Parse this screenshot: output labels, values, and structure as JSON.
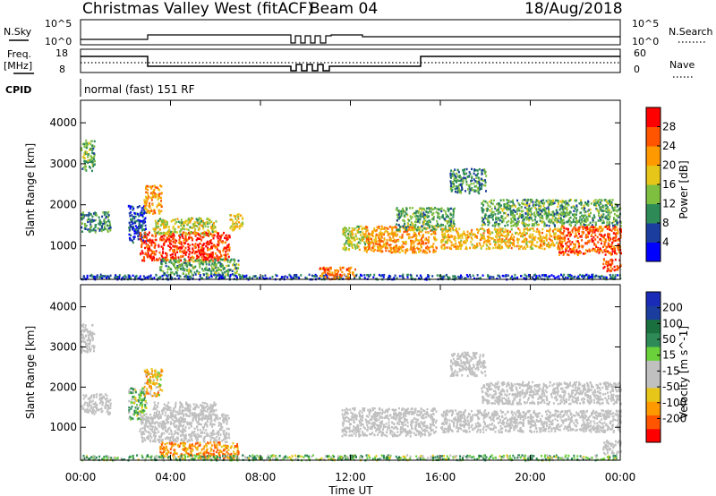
{
  "header": {
    "title": "Christmas Valley West (fitACF)",
    "beam": "Beam 04",
    "date": "18/Aug/2018"
  },
  "mini_panels": {
    "nsky_label": "N.Sky",
    "nsearch_label": "N.Search",
    "nsky_ticks": [
      "10^5",
      "10^0"
    ],
    "freq_label_1": "Freq.",
    "freq_label_2": "[MHz]",
    "freq_ticks": [
      "18",
      "8"
    ],
    "nave_label": "Nave",
    "nave_ticks": [
      "60",
      "0"
    ],
    "cpid_label": "CPID",
    "cpid_text": "normal (fast) 151 RF"
  },
  "colors": {
    "power_scale": [
      "#0000ff",
      "#1a3d9e",
      "#2e8b57",
      "#7fbf3f",
      "#e6c619",
      "#ff9900",
      "#ff5500",
      "#ff0000"
    ],
    "velocity_scale": [
      "#ff0000",
      "#ff5500",
      "#ff9900",
      "#e6c619",
      "#c0c0c0",
      "#c0c0c0",
      "#6ad13a",
      "#2e8b57",
      "#1a6f3f",
      "#1a3d9e",
      "#1a2bb8"
    ],
    "ground_scatter": "#c0c0c0"
  },
  "chart_data": [
    {
      "type": "heatmap",
      "title": "Power",
      "xlabel": "Time UT",
      "ylabel": "Slant Range [km]",
      "x_ticks": [
        "00:00",
        "04:00",
        "08:00",
        "12:00",
        "16:00",
        "20:00",
        "00:00"
      ],
      "y_ticks": [
        "1000",
        "2000",
        "3000",
        "4000"
      ],
      "x_range_hours": [
        0,
        24
      ],
      "y_range_km": [
        180,
        4550
      ],
      "colorbar_label": "Power [dB]",
      "colorbar_ticks": [
        "4",
        "8",
        "12",
        "16",
        "20",
        "24",
        "28"
      ],
      "colorbar_range": [
        0,
        32
      ],
      "regions": [
        {
          "t": [
            0.0,
            0.6
          ],
          "r": [
            2850,
            3600
          ],
          "value": 12
        },
        {
          "t": [
            0.0,
            1.3
          ],
          "r": [
            1350,
            1850
          ],
          "value": 10
        },
        {
          "t": [
            2.1,
            2.9
          ],
          "r": [
            1100,
            2000
          ],
          "value": 6
        },
        {
          "t": [
            2.8,
            3.6
          ],
          "r": [
            1800,
            2500
          ],
          "value": 22
        },
        {
          "t": [
            2.6,
            6.6
          ],
          "r": [
            650,
            1350
          ],
          "value": 28
        },
        {
          "t": [
            3.2,
            6.0
          ],
          "r": [
            1300,
            1700
          ],
          "value": 16
        },
        {
          "t": [
            3.5,
            7.0
          ],
          "r": [
            300,
            700
          ],
          "value": 12
        },
        {
          "t": [
            6.6,
            7.2
          ],
          "r": [
            1400,
            1800
          ],
          "value": 18
        },
        {
          "t": [
            0.0,
            24.0
          ],
          "r": [
            200,
            320
          ],
          "value": 6
        },
        {
          "t": [
            11.6,
            12.8
          ],
          "r": [
            900,
            1500
          ],
          "value": 16
        },
        {
          "t": [
            12.6,
            15.8
          ],
          "r": [
            850,
            1500
          ],
          "value": 22
        },
        {
          "t": [
            14.0,
            16.6
          ],
          "r": [
            1400,
            1950
          ],
          "value": 12
        },
        {
          "t": [
            16.4,
            18.0
          ],
          "r": [
            2300,
            2900
          ],
          "value": 10
        },
        {
          "t": [
            17.8,
            24.0
          ],
          "r": [
            1500,
            2150
          ],
          "value": 12
        },
        {
          "t": [
            16.0,
            21.4
          ],
          "r": [
            950,
            1450
          ],
          "value": 20
        },
        {
          "t": [
            21.2,
            24.0
          ],
          "r": [
            800,
            1500
          ],
          "value": 26
        },
        {
          "t": [
            23.2,
            24.0
          ],
          "r": [
            400,
            700
          ],
          "value": 28
        },
        {
          "t": [
            10.6,
            12.2
          ],
          "r": [
            200,
            500
          ],
          "value": 24
        }
      ]
    },
    {
      "type": "heatmap",
      "title": "Velocity",
      "xlabel": "Time UT",
      "ylabel": "Slant Range [km]",
      "x_ticks": [
        "00:00",
        "04:00",
        "08:00",
        "12:00",
        "16:00",
        "20:00",
        "00:00"
      ],
      "y_ticks": [
        "1000",
        "2000",
        "3000",
        "4000"
      ],
      "x_range_hours": [
        0,
        24
      ],
      "y_range_km": [
        180,
        4550
      ],
      "colorbar_label": "Velocity [m s^-1]",
      "colorbar_ticks": [
        "200",
        "100",
        "50",
        "15",
        "-15",
        "-50",
        "-100",
        "-200"
      ],
      "colorbar_range": [
        -250,
        250
      ],
      "regions": [
        {
          "t": [
            0.0,
            0.6
          ],
          "r": [
            2850,
            3600
          ],
          "value": 0
        },
        {
          "t": [
            0.0,
            1.3
          ],
          "r": [
            1350,
            1850
          ],
          "value": 0
        },
        {
          "t": [
            2.1,
            2.9
          ],
          "r": [
            1200,
            2000
          ],
          "value": 30
        },
        {
          "t": [
            2.8,
            3.6
          ],
          "r": [
            1800,
            2500
          ],
          "value": -40
        },
        {
          "t": [
            2.6,
            6.6
          ],
          "r": [
            650,
            1350
          ],
          "value": 0
        },
        {
          "t": [
            3.2,
            6.0
          ],
          "r": [
            1300,
            1650
          ],
          "value": 0
        },
        {
          "t": [
            3.5,
            7.0
          ],
          "r": [
            250,
            650
          ],
          "value": -90
        },
        {
          "t": [
            0.0,
            24.0
          ],
          "r": [
            200,
            330
          ],
          "value": 40
        },
        {
          "t": [
            11.6,
            15.8
          ],
          "r": [
            800,
            1500
          ],
          "value": 0
        },
        {
          "t": [
            16.0,
            24.0
          ],
          "r": [
            900,
            1450
          ],
          "value": 0
        },
        {
          "t": [
            16.4,
            18.0
          ],
          "r": [
            2300,
            2900
          ],
          "value": 0
        },
        {
          "t": [
            17.8,
            24.0
          ],
          "r": [
            1600,
            2150
          ],
          "value": 0
        },
        {
          "t": [
            23.2,
            24.0
          ],
          "r": [
            350,
            700
          ],
          "value": 0
        }
      ]
    }
  ]
}
